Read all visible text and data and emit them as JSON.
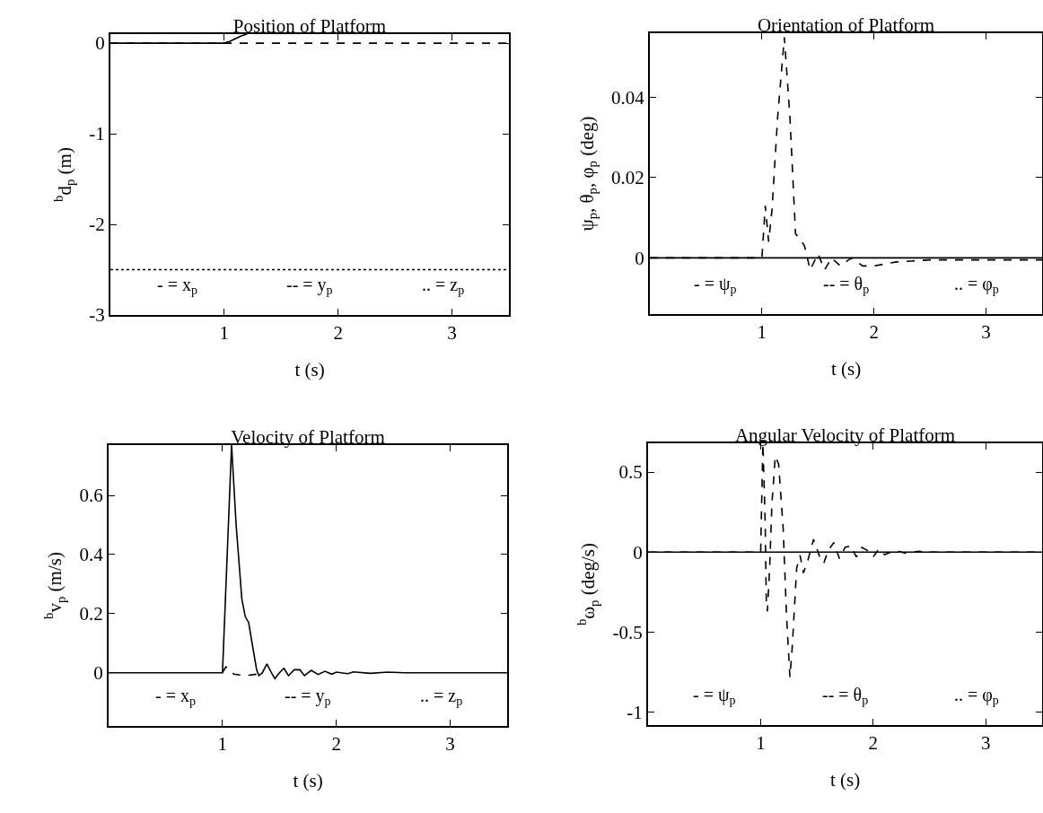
{
  "chart_data": [
    {
      "type": "line",
      "title": "Position of Platform",
      "xlabel": "t (s)",
      "ylabel": "$^{b}$d$_{p}$ (m)",
      "xlim": [
        0,
        3.5
      ],
      "ylim": [
        -3,
        0.1
      ],
      "xticks": [
        1,
        2,
        3
      ],
      "yticks": [
        -3,
        -2,
        -1,
        0
      ],
      "series": [
        {
          "color": "#000000",
          "line_style": "solid",
          "x": [
            0,
            1,
            1.05,
            1.1,
            1.15,
            1.2
          ],
          "values": [
            0,
            0,
            0.02,
            0.05,
            0.08,
            0.1
          ]
        },
        {
          "color": "#000000",
          "line_style": "dashed",
          "x": [
            0,
            3.5
          ],
          "values": [
            0,
            0
          ]
        },
        {
          "color": "#000000",
          "line_style": "dotted",
          "x": [
            0,
            3.5
          ],
          "values": [
            -2.5,
            -2.5
          ]
        }
      ],
      "annotations": [
        "- = x$_{p}$",
        "-- = y$_{p}$",
        ".. = z$_{p}$"
      ]
    },
    {
      "type": "line",
      "title": "Orientation of Platform",
      "xlabel": "t (s)",
      "ylabel": "ψ$_{p}$, θ$_{p}$, φ$_{p}$ (deg)",
      "xlim": [
        0,
        3.5
      ],
      "ylim": [
        -0.014,
        0.056
      ],
      "xticks": [
        1,
        2,
        3
      ],
      "yticks": [
        0,
        0.02,
        0.04
      ],
      "series": [
        {
          "color": "#000000",
          "line_style": "solid",
          "x": [
            0,
            3.5
          ],
          "values": [
            0,
            0
          ]
        },
        {
          "color": "#000000",
          "line_style": "dashed",
          "x": [
            0,
            1,
            1.03,
            1.06,
            1.09,
            1.14,
            1.2,
            1.25,
            1.3,
            1.33,
            1.38,
            1.43,
            1.5,
            1.56,
            1.62,
            1.7,
            1.8,
            1.9,
            2,
            2.2,
            2.5,
            3.5
          ],
          "values": [
            0,
            0,
            0.013,
            0.004,
            0.012,
            0.035,
            0.055,
            0.035,
            0.006,
            0.005,
            0.003,
            -0.003,
            0.001,
            -0.003,
            0,
            -0.002,
            0,
            -0.002,
            -0.002,
            -0.001,
            -0.0005,
            -0.0005
          ]
        }
      ],
      "annotations": [
        "- = ψ$_{p}$",
        "-- = θ$_{p}$",
        ".. = φ$_{p}$"
      ]
    },
    {
      "type": "line",
      "title": "Velocity of Platform",
      "xlabel": "t (s)",
      "ylabel": "$^{b}$v$_{p}$ (m/s)",
      "xlim": [
        0,
        3.5
      ],
      "ylim": [
        -0.18,
        0.77
      ],
      "xticks": [
        1,
        2,
        3
      ],
      "yticks": [
        0,
        0.2,
        0.4,
        0.6
      ],
      "series": [
        {
          "color": "#000000",
          "line_style": "solid",
          "x": [
            0,
            1,
            1.08,
            1.12,
            1.17,
            1.2,
            1.23,
            1.26,
            1.3,
            1.32,
            1.35,
            1.39,
            1.43,
            1.46,
            1.5,
            1.54,
            1.58,
            1.63,
            1.68,
            1.72,
            1.78,
            1.84,
            1.9,
            1.96,
            2,
            2.1,
            2.15,
            2.3,
            2.45,
            2.6,
            3.5
          ],
          "values": [
            0,
            0,
            0.77,
            0.5,
            0.25,
            0.19,
            0.17,
            0.1,
            0.01,
            -0.01,
            0,
            0.03,
            0,
            -0.02,
            0,
            0.015,
            -0.01,
            0.01,
            0.01,
            -0.01,
            0.008,
            -0.006,
            0.005,
            -0.005,
            0.002,
            -0.003,
            0.003,
            -0.002,
            0.002,
            0,
            0
          ]
        },
        {
          "color": "#000000",
          "line_style": "dashed",
          "x": [
            1,
            1.03,
            1.06,
            1.1,
            1.2,
            1.3
          ],
          "values": [
            0,
            0.02,
            0.01,
            -0.005,
            -0.01,
            -0.005
          ]
        }
      ],
      "annotations": [
        "- = x$_{p}$",
        "-- = y$_{p}$",
        ".. = z$_{p}$"
      ]
    },
    {
      "type": "line",
      "title": "Angular Velocity of Platform",
      "xlabel": "t (s)",
      "ylabel": "$^{b}$ω$_{p}$ (deg/s)",
      "xlim": [
        0,
        3.5
      ],
      "ylim": [
        -1.08,
        0.68
      ],
      "xticks": [
        1,
        2,
        3
      ],
      "yticks": [
        {
          "value": -1,
          "label": "-1"
        },
        {
          "value": -0.5,
          "label": "-0.5"
        },
        0,
        0.5
      ],
      "series": [
        {
          "color": "#000000",
          "line_style": "solid",
          "x": [
            0,
            3.5
          ],
          "values": [
            0,
            0
          ]
        },
        {
          "color": "#000000",
          "line_style": "dashed",
          "x": [
            0,
            1,
            1.02,
            1.04,
            1.05,
            1.06,
            1.08,
            1.1,
            1.13,
            1.16,
            1.2,
            1.23,
            1.26,
            1.28,
            1.32,
            1.35,
            1.38,
            1.42,
            1.47,
            1.52,
            1.56,
            1.6,
            1.65,
            1.7,
            1.75,
            1.8,
            1.85,
            1.9,
            1.95,
            2,
            2.05,
            2.1,
            2.2,
            2.3,
            2.4,
            2.5,
            3.5
          ],
          "values": [
            0,
            0,
            0.68,
            0.2,
            -0.3,
            -0.37,
            -0.1,
            0.3,
            0.6,
            0.55,
            0.15,
            -0.4,
            -0.78,
            -0.6,
            -0.1,
            -0.02,
            -0.13,
            -0.05,
            0.08,
            -0.02,
            -0.07,
            0.01,
            0.06,
            -0.04,
            0.03,
            0.04,
            -0.03,
            0.03,
            0.01,
            -0.03,
            0.02,
            -0.015,
            0.01,
            -0.01,
            0.005,
            0,
            0
          ]
        }
      ],
      "annotations": [
        "- = ψ$_{p}$",
        "-- = θ$_{p}$",
        ".. = φ$_{p}$"
      ]
    }
  ]
}
